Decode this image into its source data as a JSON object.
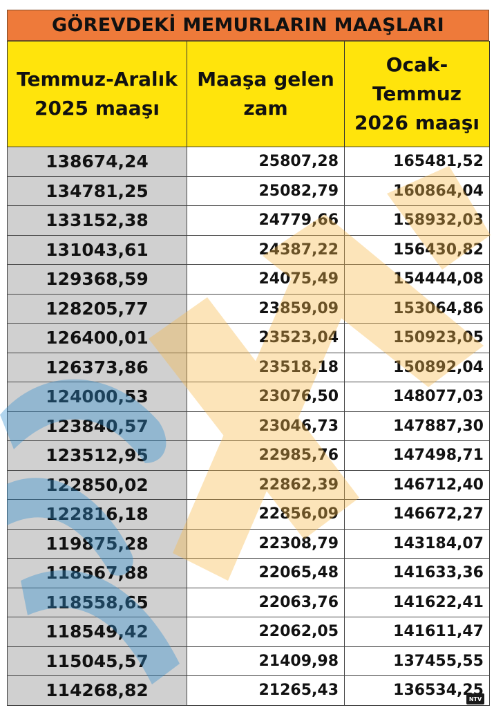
{
  "title": "GÖREVDEKİ MEMURLARIN MAAŞLARI",
  "headers": {
    "col1_line1": "Temmuz-Aralık",
    "col1_line2": "2025 maaşı",
    "col2_line1": "Maaşa gelen",
    "col2_line2": "zam",
    "col3_line1": "Ocak-",
    "col3_line2": "Temmuz",
    "col3_line3": "2026 maaşı"
  },
  "rows": [
    {
      "current": "138674,24",
      "raise": "25807,28",
      "new": "165481,52"
    },
    {
      "current": "134781,25",
      "raise": "25082,79",
      "new": "160864,04"
    },
    {
      "current": "133152,38",
      "raise": "24779,66",
      "new": "158932,03"
    },
    {
      "current": "131043,61",
      "raise": "24387,22",
      "new": "156430,82"
    },
    {
      "current": "129368,59",
      "raise": "24075,49",
      "new": "154444,08"
    },
    {
      "current": "128205,77",
      "raise": "23859,09",
      "new": "153064,86"
    },
    {
      "current": "126400,01",
      "raise": "23523,04",
      "new": "150923,05"
    },
    {
      "current": "126373,86",
      "raise": "23518,18",
      "new": "150892,04"
    },
    {
      "current": "124000,53",
      "raise": "23076,50",
      "new": "148077,03"
    },
    {
      "current": "123840,57",
      "raise": "23046,73",
      "new": "147887,30"
    },
    {
      "current": "123512,95",
      "raise": "22985,76",
      "new": "147498,71"
    },
    {
      "current": "122850,02",
      "raise": "22862,39",
      "new": "146712,40"
    },
    {
      "current": "122816,18",
      "raise": "22856,09",
      "new": "146672,27"
    },
    {
      "current": "119875,28",
      "raise": "22308,79",
      "new": "143184,07"
    },
    {
      "current": "118567,88",
      "raise": "22065,48",
      "new": "141633,36"
    },
    {
      "current": "118558,65",
      "raise": "22063,76",
      "new": "141622,41"
    },
    {
      "current": "118549,42",
      "raise": "22062,05",
      "new": "141611,47"
    },
    {
      "current": "115045,57",
      "raise": "21409,98",
      "new": "137455,55"
    },
    {
      "current": "114268,82",
      "raise": "21265,43",
      "new": "136534,25"
    }
  ],
  "logo": {
    "text": "NTV"
  },
  "colors": {
    "title_bg": "#ee7a3a",
    "header_bg": "#ffe40c",
    "first_col_bg": "#d0d0d0",
    "watermark_orange": "#f8b94a",
    "watermark_blue": "#2f8fd0"
  }
}
